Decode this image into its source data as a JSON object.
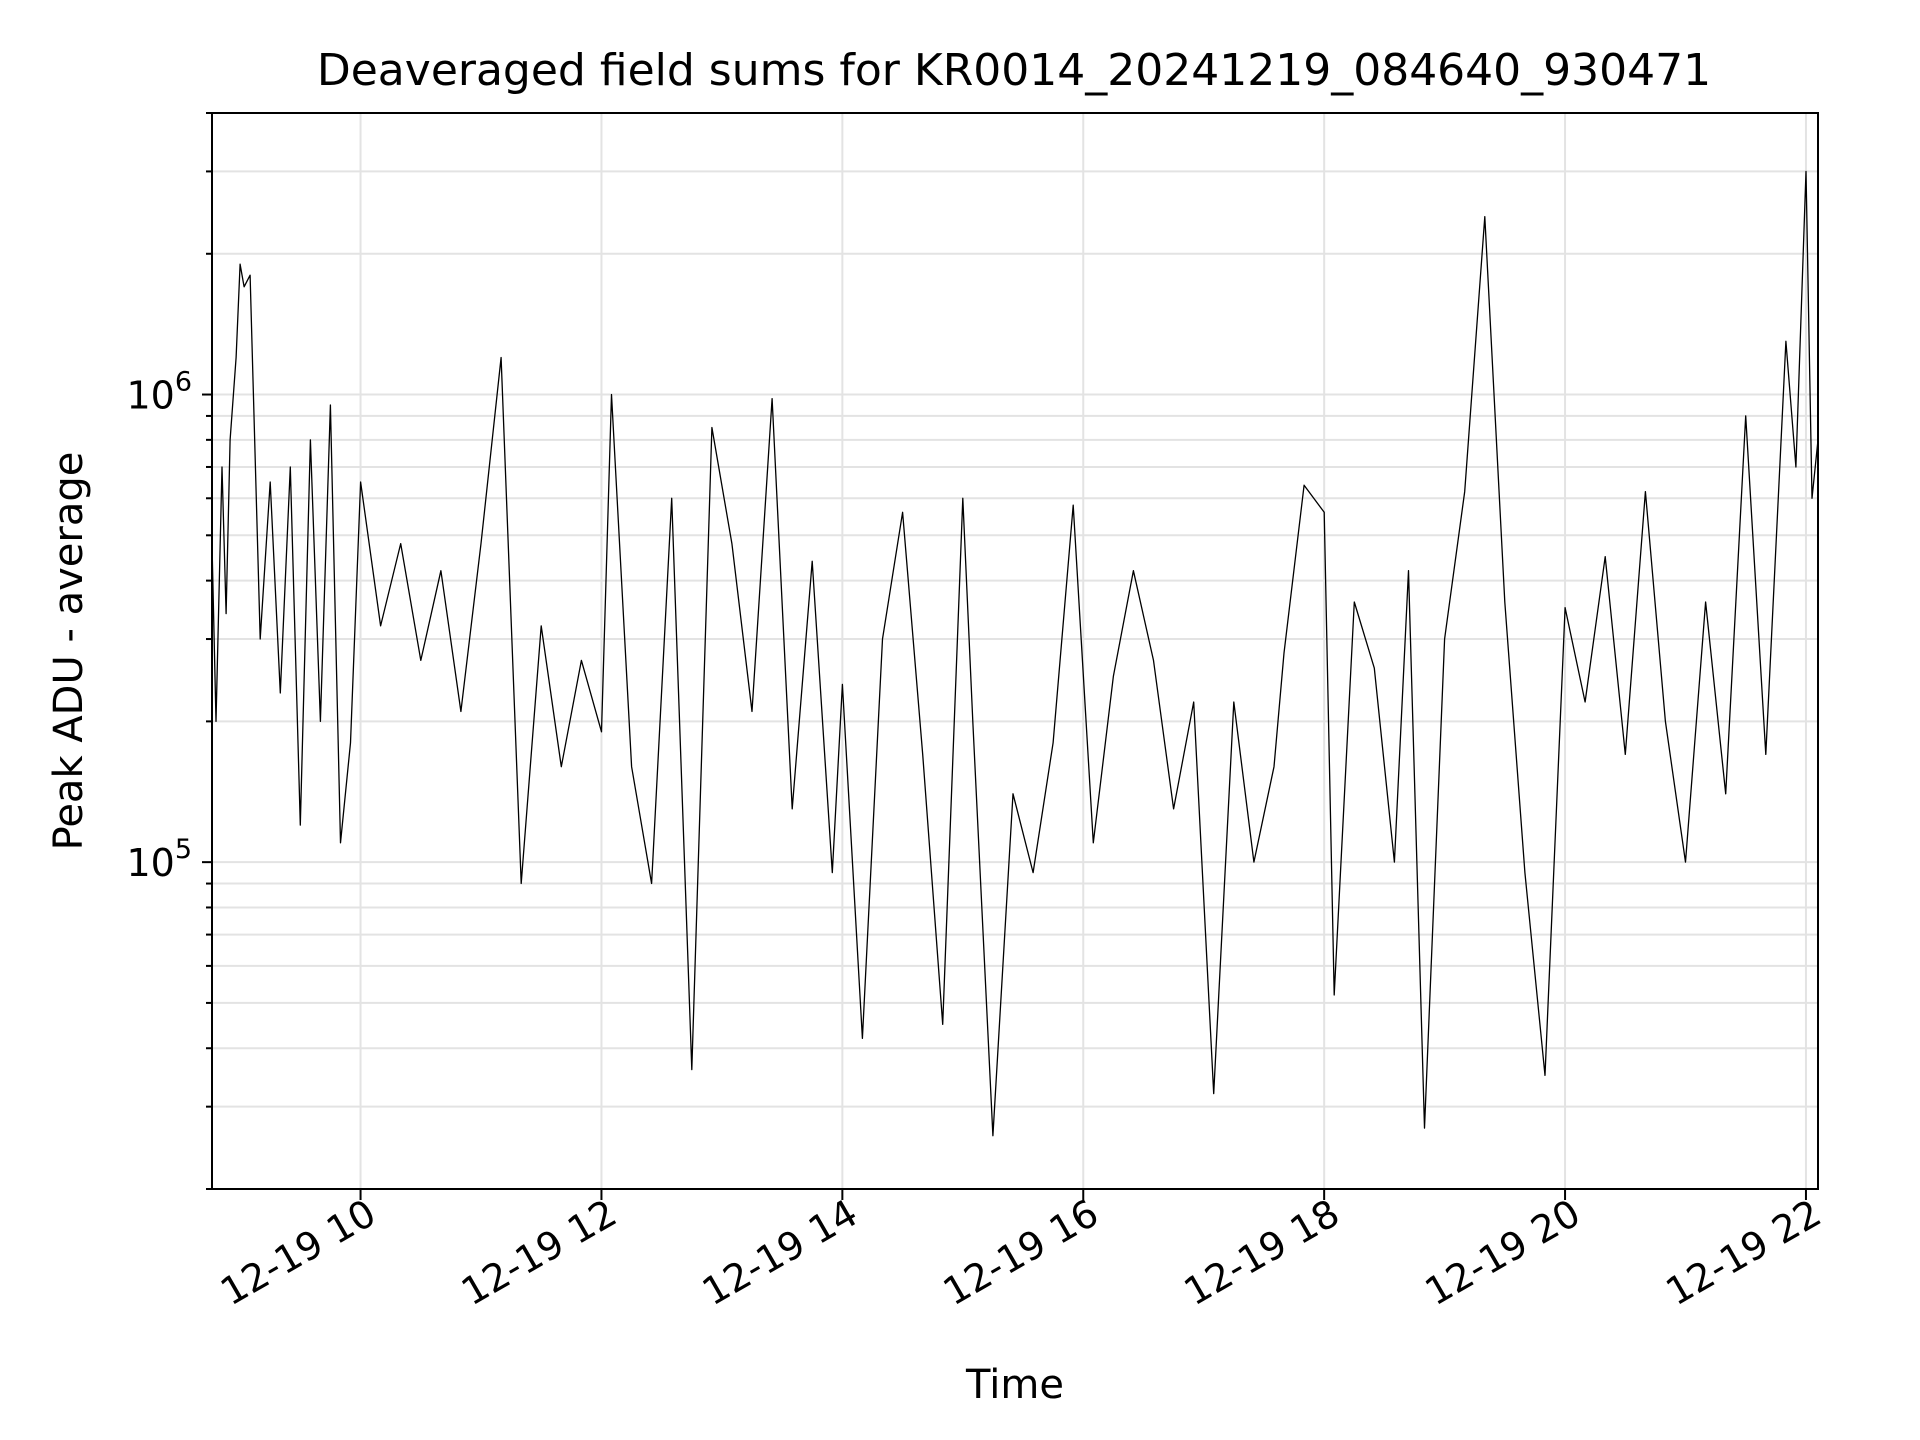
{
  "chart_data": {
    "type": "line",
    "title": "Deaveraged field sums for KR0014_20241219_084640_930471",
    "xlabel": "Time",
    "ylabel": "Peak ADU - average",
    "x_range": [
      "12-19 08:46",
      "12-19 22:06"
    ],
    "y_range": [
      20000,
      4000000
    ],
    "y_scale": "log",
    "grid": true,
    "x_ticks": [
      "12-19 10",
      "12-19 12",
      "12-19 14",
      "12-19 16",
      "12-19 18",
      "12-19 20",
      "12-19 22"
    ],
    "y_ticks": [
      {
        "base": "10",
        "exp": "5",
        "value": 100000
      },
      {
        "base": "10",
        "exp": "6",
        "value": 1000000
      }
    ],
    "line_color": "#000000",
    "series": [
      {
        "x": [
          "12-19 08:46",
          "12-19 08:48",
          "12-19 08:51",
          "12-19 08:53",
          "12-19 08:55",
          "12-19 08:58",
          "12-19 09:00",
          "12-19 09:02",
          "12-19 09:05",
          "12-19 09:10",
          "12-19 09:15",
          "12-19 09:20",
          "12-19 09:25",
          "12-19 09:30",
          "12-19 09:35",
          "12-19 09:40",
          "12-19 09:45",
          "12-19 09:50",
          "12-19 09:55",
          "12-19 10:00",
          "12-19 10:10",
          "12-19 10:20",
          "12-19 10:30",
          "12-19 10:40",
          "12-19 10:50",
          "12-19 11:00",
          "12-19 11:10",
          "12-19 11:20",
          "12-19 11:30",
          "12-19 11:40",
          "12-19 11:50",
          "12-19 12:00",
          "12-19 12:05",
          "12-19 12:15",
          "12-19 12:25",
          "12-19 12:35",
          "12-19 12:45",
          "12-19 12:55",
          "12-19 13:05",
          "12-19 13:15",
          "12-19 13:25",
          "12-19 13:35",
          "12-19 13:45",
          "12-19 13:55",
          "12-19 14:00",
          "12-19 14:10",
          "12-19 14:20",
          "12-19 14:30",
          "12-19 14:40",
          "12-19 14:50",
          "12-19 15:00",
          "12-19 15:05",
          "12-19 15:15",
          "12-19 15:25",
          "12-19 15:35",
          "12-19 15:45",
          "12-19 15:55",
          "12-19 16:05",
          "12-19 16:15",
          "12-19 16:25",
          "12-19 16:35",
          "12-19 16:45",
          "12-19 16:55",
          "12-19 17:05",
          "12-19 17:15",
          "12-19 17:25",
          "12-19 17:35",
          "12-19 17:40",
          "12-19 17:50",
          "12-19 18:00",
          "12-19 18:05",
          "12-19 18:15",
          "12-19 18:25",
          "12-19 18:35",
          "12-19 18:42",
          "12-19 18:50",
          "12-19 19:00",
          "12-19 19:10",
          "12-19 19:20",
          "12-19 19:30",
          "12-19 19:40",
          "12-19 19:50",
          "12-19 20:00",
          "12-19 20:10",
          "12-19 20:20",
          "12-19 20:30",
          "12-19 20:40",
          "12-19 20:50",
          "12-19 21:00",
          "12-19 21:10",
          "12-19 21:20",
          "12-19 21:30",
          "12-19 21:40",
          "12-19 21:50",
          "12-19 21:55",
          "12-19 22:00",
          "12-19 22:03",
          "12-19 22:06"
        ],
        "values": [
          480000,
          200000,
          700000,
          340000,
          800000,
          1200000,
          1900000,
          1700000,
          1800000,
          300000,
          650000,
          230000,
          700000,
          120000,
          800000,
          200000,
          950000,
          110000,
          180000,
          650000,
          320000,
          480000,
          270000,
          420000,
          210000,
          480000,
          1200000,
          90000,
          320000,
          160000,
          270000,
          190000,
          1000000,
          160000,
          90000,
          600000,
          36000,
          850000,
          480000,
          210000,
          980000,
          130000,
          440000,
          95000,
          240000,
          42000,
          300000,
          560000,
          170000,
          45000,
          600000,
          200000,
          26000,
          140000,
          95000,
          180000,
          580000,
          110000,
          250000,
          420000,
          270000,
          130000,
          220000,
          32000,
          220000,
          100000,
          160000,
          280000,
          640000,
          560000,
          52000,
          360000,
          260000,
          100000,
          420000,
          27000,
          300000,
          620000,
          2400000,
          360000,
          95000,
          35000,
          350000,
          220000,
          450000,
          170000,
          620000,
          200000,
          100000,
          360000,
          140000,
          900000,
          170000,
          1300000,
          700000,
          3000000,
          600000,
          800000
        ]
      }
    ]
  }
}
